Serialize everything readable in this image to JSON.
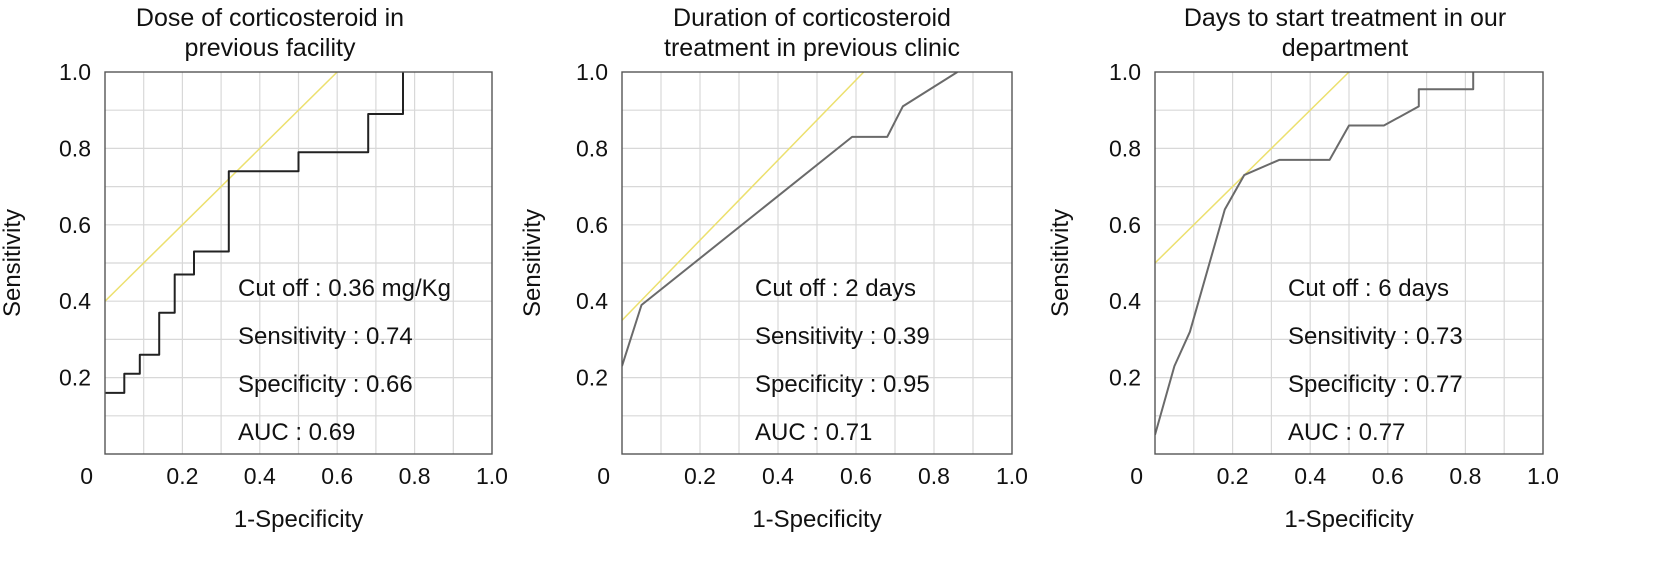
{
  "colors": {
    "roc_step": "#222222",
    "roc_smooth": "#6a6a6a",
    "reference": "#ece06e",
    "grid": "#d8d8d8"
  },
  "chart_data": [
    {
      "type": "line",
      "title_lines": [
        "Dose of corticosteroid in",
        "previous facility"
      ],
      "xlabel": "1-Specificity",
      "ylabel": "Sensitivity",
      "xlim": [
        0,
        1
      ],
      "ylim": [
        0,
        1
      ],
      "xtick_labels": [
        "0",
        "0.2",
        "0.4",
        "0.6",
        "0.8",
        "1.0"
      ],
      "ytick_labels": [
        "0.2",
        "0.4",
        "0.6",
        "0.8",
        "1.0"
      ],
      "grid": true,
      "roc_style": "step",
      "roc_x": [
        0,
        0.05,
        0.05,
        0.09,
        0.09,
        0.14,
        0.14,
        0.18,
        0.18,
        0.23,
        0.23,
        0.32,
        0.32,
        0.5,
        0.5,
        0.68,
        0.68,
        0.77,
        0.77
      ],
      "roc_y": [
        0.16,
        0.16,
        0.21,
        0.21,
        0.26,
        0.26,
        0.37,
        0.37,
        0.47,
        0.47,
        0.53,
        0.53,
        0.74,
        0.74,
        0.79,
        0.79,
        0.89,
        0.89,
        1.0
      ],
      "ref_line": {
        "x": [
          0,
          0.6
        ],
        "y": [
          0.4,
          1.0
        ]
      },
      "annotations": [
        "Cut off : 0.36 mg/Kg",
        "Sensitivity : 0.74",
        "Specificity : 0.66",
        "AUC : 0.69"
      ]
    },
    {
      "type": "line",
      "title_lines": [
        "Duration of corticosteroid",
        "treatment in previous clinic"
      ],
      "xlabel": "1-Specificity",
      "ylabel": "Sensitivity",
      "xlim": [
        0,
        1
      ],
      "ylim": [
        0,
        1
      ],
      "xtick_labels": [
        "0",
        "0.2",
        "0.4",
        "0.6",
        "0.8",
        "1.0"
      ],
      "ytick_labels": [
        "0.2",
        "0.4",
        "0.6",
        "0.8",
        "1.0"
      ],
      "grid": true,
      "roc_style": "smooth",
      "roc_x": [
        0,
        0.05,
        0.59,
        0.68,
        0.72,
        0.86
      ],
      "roc_y": [
        0.23,
        0.39,
        0.83,
        0.83,
        0.91,
        1.0
      ],
      "ref_line": {
        "x": [
          0,
          0.62
        ],
        "y": [
          0.35,
          1.0
        ]
      },
      "annotations": [
        "Cut off : 2 days",
        "Sensitivity : 0.39",
        "Specificity : 0.95",
        "AUC : 0.71"
      ]
    },
    {
      "type": "line",
      "title_lines": [
        "Days to start treatment in our",
        "department"
      ],
      "xlabel": "1-Specificity",
      "ylabel": "Sensitivity",
      "xlim": [
        0,
        1
      ],
      "ylim": [
        0,
        1
      ],
      "xtick_labels": [
        "0",
        "0.2",
        "0.4",
        "0.6",
        "0.8",
        "1.0"
      ],
      "ytick_labels": [
        "0.2",
        "0.4",
        "0.6",
        "0.8",
        "1.0"
      ],
      "grid": true,
      "roc_style": "smooth",
      "roc_x": [
        0,
        0.05,
        0.09,
        0.18,
        0.23,
        0.32,
        0.45,
        0.5,
        0.59,
        0.68,
        0.68,
        0.82,
        0.82
      ],
      "roc_y": [
        0.05,
        0.23,
        0.32,
        0.64,
        0.73,
        0.77,
        0.77,
        0.86,
        0.86,
        0.91,
        0.955,
        0.955,
        1.0
      ],
      "ref_line": {
        "x": [
          0,
          0.5
        ],
        "y": [
          0.5,
          1.0
        ]
      },
      "annotations": [
        "Cut off : 6 days",
        "Sensitivity : 0.73",
        "Specificity : 0.77",
        "AUC : 0.77"
      ]
    }
  ]
}
